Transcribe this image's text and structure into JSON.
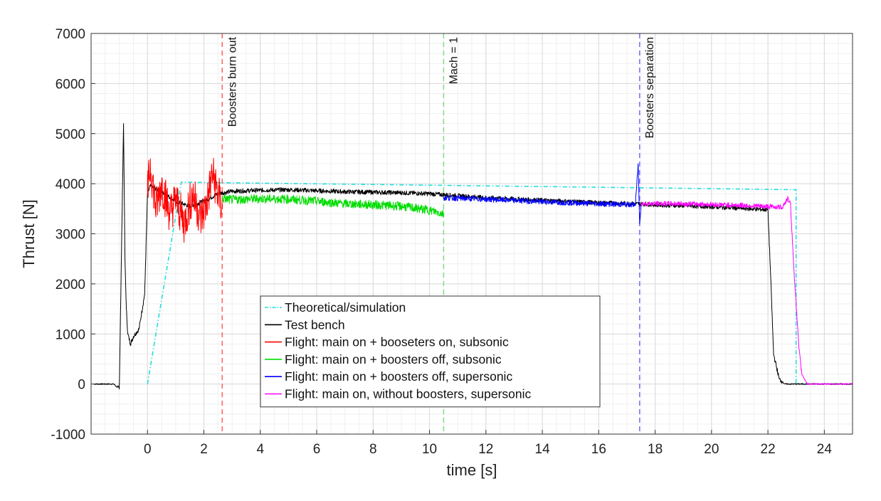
{
  "chart_data": {
    "type": "line",
    "title": "",
    "xlabel": "time [s]",
    "ylabel": "Thrust [N]",
    "xlim": [
      -2,
      25
    ],
    "ylim": [
      -1000,
      7000
    ],
    "xticks": [
      0,
      2,
      4,
      6,
      8,
      10,
      12,
      14,
      16,
      18,
      20,
      22,
      24
    ],
    "yticks": [
      -1000,
      0,
      1000,
      2000,
      3000,
      4000,
      5000,
      6000,
      7000
    ],
    "grid": true,
    "legend_position": "bottom-center",
    "colors": {
      "theoretical": "#22dddd",
      "bench": "#000000",
      "red": "#ff0000",
      "green": "#00dd00",
      "blue": "#0000ff",
      "magenta": "#ff00ff"
    },
    "events": [
      {
        "name": "booster-burnout",
        "x": 2.65,
        "label": "Boosters burn out",
        "color": "#ff6666"
      },
      {
        "name": "mach-1",
        "x": 10.5,
        "label": "Mach = 1",
        "color": "#88dd88"
      },
      {
        "name": "booster-separation",
        "x": 17.45,
        "label": "Boosters separation",
        "color": "#7777ff"
      }
    ],
    "series": [
      {
        "key": "theoretical",
        "name": "Theoretical/simulation",
        "style": "dash-dot",
        "x": [
          0,
          1.2,
          17.4,
          23.0,
          23.0,
          25
        ],
        "y": [
          0,
          4030,
          3920,
          3880,
          0,
          0
        ]
      },
      {
        "key": "bench",
        "name": "Test bench",
        "style": "solid",
        "x": [
          -1.9,
          -1.2,
          -1.0,
          -0.85,
          -0.8,
          -0.75,
          -0.7,
          -0.6,
          -0.5,
          -0.3,
          -0.1,
          0.0,
          0.1,
          0.3,
          0.6,
          1.0,
          1.5,
          2.0,
          2.5,
          3.0,
          4.0,
          5.0,
          6.0,
          7.0,
          8.0,
          9.0,
          10.0,
          11.0,
          12.0,
          14.0,
          16.0,
          17.4,
          18.0,
          20.0,
          22.0,
          22.1,
          22.2,
          22.4,
          22.6,
          23.0,
          25.0
        ],
        "y": [
          0,
          0,
          -100,
          5200,
          2500,
          1500,
          1000,
          800,
          950,
          1100,
          1800,
          3800,
          3950,
          3900,
          3800,
          3650,
          3550,
          3650,
          3800,
          3850,
          3870,
          3880,
          3860,
          3840,
          3830,
          3820,
          3800,
          3760,
          3720,
          3670,
          3620,
          3600,
          3580,
          3540,
          3480,
          2100,
          600,
          100,
          0,
          0,
          0
        ]
      },
      {
        "key": "red",
        "name": "Flight: main on + booseters on, subsonic",
        "style": "solid",
        "x": [
          0.0,
          0.1,
          0.3,
          0.5,
          0.8,
          1.0,
          1.3,
          1.6,
          1.9,
          2.1,
          2.3,
          2.5,
          2.65
        ],
        "y": [
          3800,
          4400,
          3500,
          4000,
          3400,
          3700,
          3200,
          3800,
          3300,
          3600,
          4200,
          3800,
          3500
        ]
      },
      {
        "key": "green",
        "name": "Flight: main on + boosters off, subsonic",
        "style": "solid",
        "x": [
          2.65,
          3.0,
          4.0,
          5.0,
          6.0,
          7.0,
          8.0,
          9.0,
          10.0,
          10.5
        ],
        "y": [
          3700,
          3680,
          3700,
          3690,
          3650,
          3600,
          3580,
          3550,
          3470,
          3400
        ]
      },
      {
        "key": "blue",
        "name": "Flight: main on + boosters off, supersonic",
        "style": "solid",
        "x": [
          10.5,
          12.0,
          14.0,
          16.0,
          17.3,
          17.4,
          17.45,
          17.5
        ],
        "y": [
          3720,
          3690,
          3640,
          3600,
          3580,
          4400,
          3200,
          3580
        ]
      },
      {
        "key": "magenta",
        "name": "Flight: main on, without boosters, supersonic",
        "style": "solid",
        "x": [
          17.5,
          19.0,
          21.0,
          22.5,
          22.7,
          22.8,
          22.9,
          23.0,
          23.1,
          23.2,
          23.4,
          25.0
        ],
        "y": [
          3600,
          3600,
          3570,
          3530,
          3700,
          3600,
          2500,
          1600,
          700,
          200,
          0,
          0
        ]
      }
    ]
  }
}
